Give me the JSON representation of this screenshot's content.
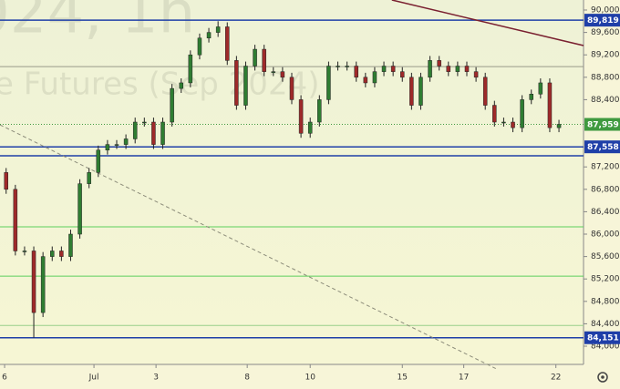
{
  "chart_data": {
    "type": "candlestick",
    "watermark": [
      "024, 1h",
      "e Futures (Sep 2024)"
    ],
    "x": [
      1,
      4,
      7,
      10,
      13,
      16,
      19,
      22,
      25,
      28,
      31,
      34,
      37,
      40,
      43,
      46,
      49,
      52,
      55,
      58,
      61,
      64,
      67,
      70,
      73,
      76,
      79,
      82,
      85,
      88,
      91,
      94,
      97,
      100,
      103,
      106,
      109,
      112,
      115,
      118,
      121,
      124,
      127,
      130,
      133,
      136,
      139,
      142,
      145,
      148,
      151,
      154,
      157,
      160,
      163,
      166,
      169,
      172,
      175,
      178,
      181
    ],
    "open": [
      87100,
      86800,
      85700,
      85700,
      84600,
      85600,
      85700,
      85600,
      86000,
      86900,
      87100,
      87500,
      87600,
      87600,
      87700,
      88000,
      88000,
      87600,
      88000,
      88600,
      88700,
      89200,
      89500,
      89600,
      89700,
      89100,
      88300,
      89000,
      89300,
      88900,
      88900,
      88800,
      88400,
      87800,
      88000,
      88400,
      89000,
      89000,
      89000,
      88800,
      88700,
      88900,
      89000,
      88900,
      88800,
      88300,
      88800,
      89100,
      89000,
      88900,
      89000,
      88900,
      88800,
      88300,
      88000,
      88000,
      87900,
      88400,
      88500,
      88700,
      87900
    ],
    "high": [
      87180,
      86880,
      85780,
      85780,
      85680,
      85780,
      85780,
      86080,
      86980,
      87180,
      87580,
      87680,
      87680,
      87780,
      88080,
      88080,
      88080,
      88080,
      88680,
      88780,
      89280,
      89580,
      89680,
      89800,
      89780,
      89180,
      89080,
      89380,
      89380,
      88980,
      88980,
      88880,
      88480,
      88080,
      88480,
      89080,
      89080,
      89080,
      89080,
      88880,
      88980,
      89080,
      89080,
      88980,
      88880,
      88880,
      89180,
      89180,
      89080,
      89080,
      89080,
      88980,
      88880,
      88380,
      88080,
      88080,
      88480,
      88580,
      88780,
      88780,
      88040
    ],
    "low": [
      86720,
      85620,
      85620,
      84151,
      84520,
      85520,
      85520,
      85520,
      85920,
      86820,
      87020,
      87420,
      87520,
      87520,
      87620,
      87920,
      87520,
      87520,
      87920,
      88520,
      88620,
      89120,
      89420,
      89520,
      89020,
      88220,
      88220,
      88920,
      88820,
      88820,
      88720,
      88320,
      87720,
      87720,
      87920,
      88320,
      88920,
      88920,
      88720,
      88620,
      88620,
      88820,
      88820,
      88720,
      88220,
      88220,
      88720,
      88920,
      88820,
      88820,
      88820,
      88720,
      88220,
      87920,
      87920,
      87820,
      87820,
      88320,
      88420,
      87820,
      87820
    ],
    "close": [
      86800,
      85700,
      85700,
      84600,
      85600,
      85700,
      85600,
      86000,
      86900,
      87100,
      87500,
      87600,
      87600,
      87700,
      88000,
      88000,
      87600,
      88000,
      88600,
      88700,
      89200,
      89500,
      89600,
      89700,
      89100,
      88300,
      89000,
      89300,
      88900,
      88900,
      88800,
      88400,
      87800,
      88000,
      88400,
      89000,
      89000,
      89000,
      88800,
      88700,
      88900,
      89000,
      88900,
      88800,
      88300,
      88800,
      89100,
      89000,
      88900,
      89000,
      88900,
      88800,
      88300,
      88000,
      88000,
      87900,
      88400,
      88500,
      88700,
      87900,
      87960
    ],
    "up_color": "#2f7d32",
    "down_color": "#9e2a2a",
    "xlim": [
      -1,
      189
    ],
    "xticks": [
      {
        "value": 0.5,
        "label": "6"
      },
      {
        "value": 29.6,
        "label": "Jul"
      },
      {
        "value": 49.8,
        "label": "3"
      },
      {
        "value": 79.5,
        "label": "8"
      },
      {
        "value": 100,
        "label": "10"
      },
      {
        "value": 130,
        "label": "15"
      },
      {
        "value": 150,
        "label": "17"
      },
      {
        "value": 180,
        "label": "22"
      }
    ],
    "ylim": [
      83675,
      90179
    ],
    "yticks": [
      {
        "value": 90000,
        "label": "90,000"
      },
      {
        "value": 89600,
        "label": "89,600"
      },
      {
        "value": 89200,
        "label": "89,200"
      },
      {
        "value": 88800,
        "label": "88,800"
      },
      {
        "value": 88400,
        "label": "88,400"
      },
      {
        "value": 87200,
        "label": "87,200"
      },
      {
        "value": 86800,
        "label": "86,800"
      },
      {
        "value": 86400,
        "label": "86,400"
      },
      {
        "value": 86000,
        "label": "86,000"
      },
      {
        "value": 85600,
        "label": "85,600"
      },
      {
        "value": 85200,
        "label": "85,200"
      },
      {
        "value": 84800,
        "label": "84,800"
      },
      {
        "value": 84400,
        "label": "84,400"
      },
      {
        "value": 84000,
        "label": "84,000"
      }
    ],
    "levels": [
      {
        "value": 89819,
        "label": "89,819",
        "color": "#1f3fa8"
      },
      {
        "value": 87558,
        "label": "87,558",
        "color": "#1f3fa8"
      },
      {
        "value": 87398,
        "color": "#1f3fa8"
      },
      {
        "value": 84151,
        "label": "84,151",
        "color": "#1f3fa8"
      },
      {
        "value": 88990,
        "color": "#9a9a8a"
      },
      {
        "value": 86130,
        "color": "#5ccf5c"
      },
      {
        "value": 85250,
        "color": "#5ccf5c"
      },
      {
        "value": 84370,
        "color": "#9ad08a"
      }
    ],
    "last_price": {
      "value": 87959,
      "label": "87,959",
      "color": "#3f9a3f"
    },
    "trendlines": [
      {
        "x": [
          126.6,
          189
        ],
        "y": [
          90179,
          89366
        ],
        "color": "#7a2030",
        "dash": false
      },
      {
        "x": [
          -1,
          160.7
        ],
        "y": [
          87951,
          83594
        ],
        "color": "#8c8c7a",
        "dash": true
      }
    ]
  }
}
